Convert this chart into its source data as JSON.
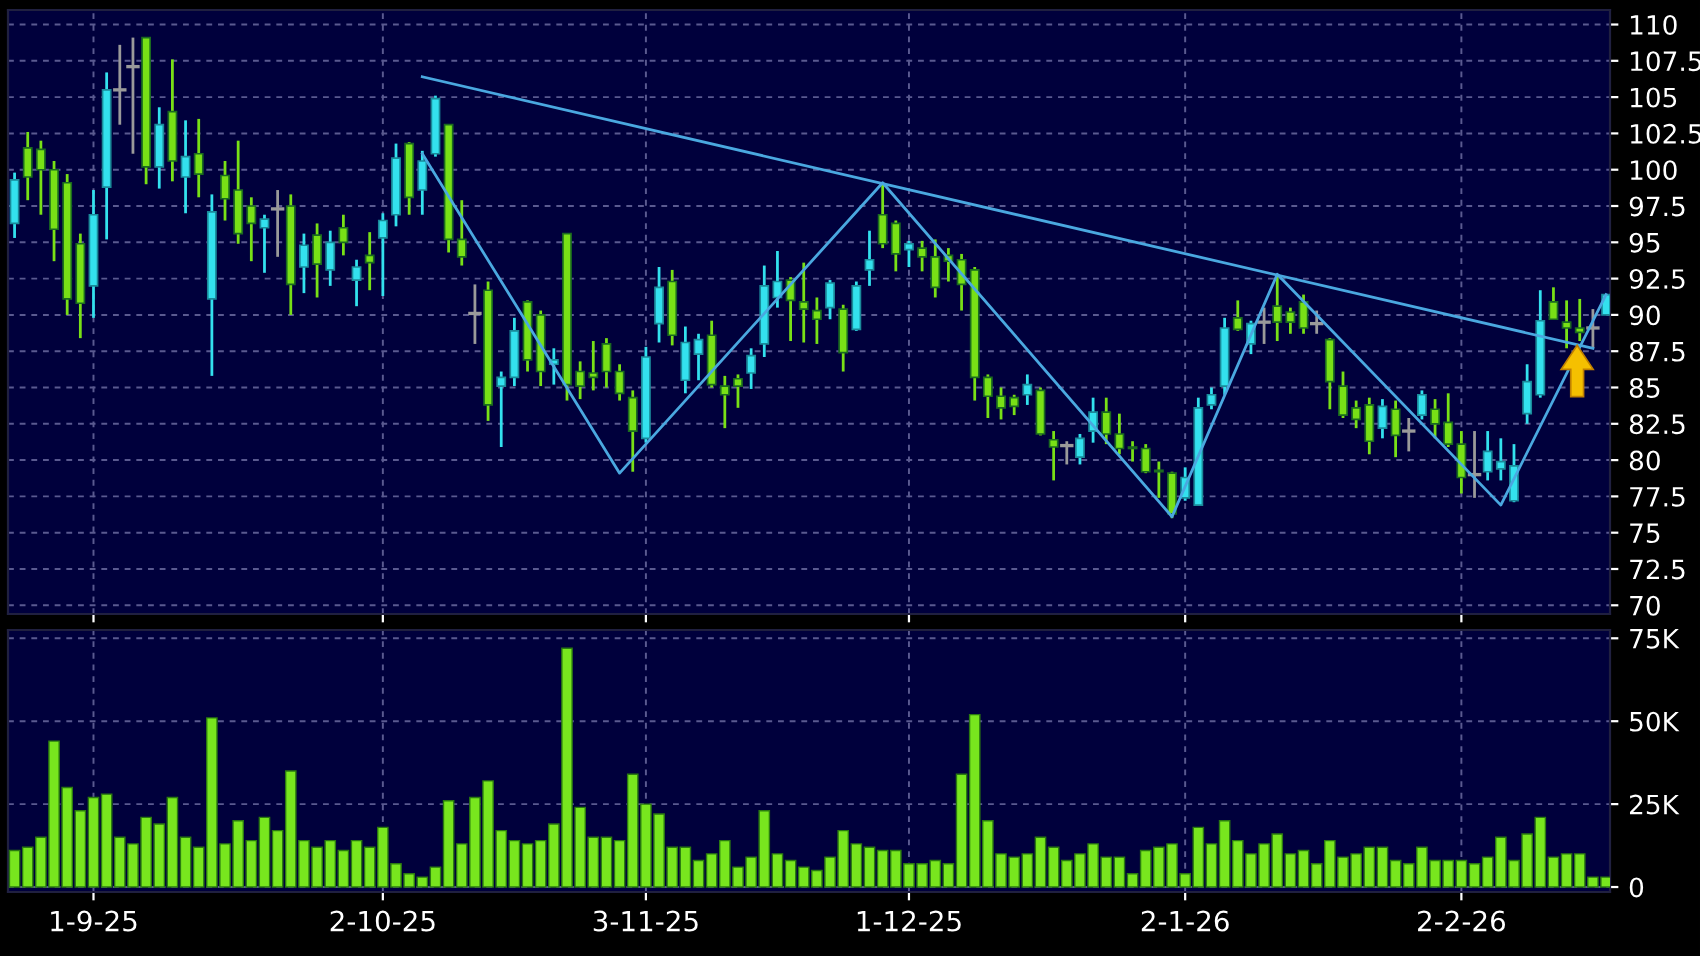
{
  "chart_data": [
    {
      "type": "candlestick",
      "categories": [
        null,
        null,
        null,
        null,
        null,
        null,
        null,
        null,
        null,
        null,
        null,
        null,
        null,
        null,
        null,
        null,
        null,
        null,
        null,
        null,
        null,
        null,
        null,
        null,
        null,
        null,
        null,
        null,
        null,
        null,
        null,
        null,
        null,
        null,
        null,
        null,
        null,
        null,
        null,
        null,
        null,
        null,
        null,
        null,
        null,
        null,
        null,
        null,
        null,
        null,
        null,
        null,
        null,
        null,
        null,
        null,
        null,
        null,
        null,
        null,
        null,
        null,
        null,
        null,
        null,
        null,
        null,
        null,
        null,
        null,
        null,
        null,
        null,
        null,
        null,
        null,
        null,
        null,
        null,
        null,
        null,
        null,
        null,
        null,
        null,
        null,
        null,
        null,
        null,
        null,
        null,
        null,
        null,
        null,
        null,
        null,
        null,
        null,
        null,
        null,
        null,
        null,
        null,
        null,
        null,
        null,
        null,
        null,
        null,
        null,
        null,
        null,
        null,
        null,
        null,
        null,
        null,
        null,
        null,
        null,
        null,
        null
      ],
      "ohlc": [
        [
          96.3,
          99.8,
          95.3,
          99.3
        ],
        [
          101.5,
          102.6,
          97.9,
          99.5
        ],
        [
          101.4,
          102.0,
          96.9,
          100.0
        ],
        [
          100.0,
          100.6,
          93.7,
          95.9
        ],
        [
          99.1,
          99.7,
          90.0,
          91.1
        ],
        [
          94.9,
          95.6,
          88.4,
          90.8
        ],
        [
          92.0,
          98.6,
          89.8,
          96.9
        ],
        [
          98.8,
          106.7,
          95.2,
          105.5
        ],
        [
          105.5,
          108.6,
          103.1,
          105.5
        ],
        [
          107.1,
          109.1,
          101.1,
          107.1
        ],
        [
          109.1,
          109.1,
          99.0,
          100.2
        ],
        [
          100.2,
          104.3,
          98.7,
          103.1
        ],
        [
          104.0,
          107.6,
          99.2,
          100.6
        ],
        [
          99.5,
          103.4,
          97.0,
          100.9
        ],
        [
          101.1,
          103.5,
          98.1,
          99.7
        ],
        [
          91.1,
          98.3,
          85.8,
          97.1
        ],
        [
          99.6,
          100.6,
          96.5,
          98.0
        ],
        [
          98.6,
          102.0,
          94.9,
          95.6
        ],
        [
          97.5,
          98.1,
          93.7,
          96.3
        ],
        [
          96.0,
          96.9,
          92.9,
          96.6
        ],
        [
          97.3,
          98.6,
          94.0,
          97.3
        ],
        [
          97.5,
          98.3,
          90.0,
          92.1
        ],
        [
          93.3,
          95.6,
          91.5,
          94.8
        ],
        [
          95.5,
          96.3,
          91.2,
          93.5
        ],
        [
          93.1,
          95.8,
          92.0,
          95.0
        ],
        [
          96.0,
          96.9,
          94.1,
          95.0
        ],
        [
          92.4,
          93.8,
          90.6,
          93.3
        ],
        [
          94.1,
          95.7,
          91.7,
          93.6
        ],
        [
          95.3,
          97.0,
          91.3,
          96.5
        ],
        [
          96.9,
          101.8,
          96.1,
          100.8
        ],
        [
          101.8,
          101.9,
          96.9,
          98.1
        ],
        [
          98.6,
          101.3,
          96.9,
          100.6
        ],
        [
          101.1,
          105.1,
          100.9,
          104.9
        ],
        [
          103.1,
          103.1,
          94.3,
          95.2
        ],
        [
          95.2,
          97.9,
          93.4,
          94.0
        ],
        [
          90.1,
          92.1,
          88.0,
          90.1
        ],
        [
          91.7,
          92.3,
          82.7,
          83.8
        ],
        [
          85.1,
          86.1,
          80.9,
          85.7
        ],
        [
          85.7,
          89.8,
          85.1,
          88.9
        ],
        [
          90.9,
          91.0,
          86.1,
          86.9
        ],
        [
          90.0,
          90.3,
          85.1,
          86.1
        ],
        [
          86.6,
          87.7,
          85.2,
          86.9
        ],
        [
          95.6,
          95.6,
          84.1,
          85.2
        ],
        [
          86.1,
          86.8,
          84.2,
          85.1
        ],
        [
          86.0,
          88.2,
          84.8,
          85.7
        ],
        [
          88.0,
          88.4,
          85.0,
          86.1
        ],
        [
          86.1,
          86.6,
          84.1,
          84.6
        ],
        [
          84.3,
          84.8,
          79.2,
          82.0
        ],
        [
          81.5,
          87.8,
          81.2,
          87.1
        ],
        [
          89.4,
          93.3,
          88.1,
          91.9
        ],
        [
          92.3,
          93.1,
          87.9,
          88.6
        ],
        [
          85.5,
          89.2,
          84.6,
          88.1
        ],
        [
          87.3,
          88.7,
          85.5,
          88.3
        ],
        [
          88.6,
          89.6,
          85.0,
          85.2
        ],
        [
          85.1,
          85.8,
          82.2,
          84.5
        ],
        [
          85.6,
          85.9,
          83.6,
          85.1
        ],
        [
          86.0,
          87.7,
          84.9,
          87.2
        ],
        [
          88.0,
          93.4,
          87.1,
          92.0
        ],
        [
          91.2,
          94.4,
          90.5,
          92.3
        ],
        [
          92.4,
          92.6,
          88.2,
          91.0
        ],
        [
          90.9,
          93.6,
          88.1,
          90.4
        ],
        [
          90.3,
          91.2,
          88.0,
          89.7
        ],
        [
          90.5,
          92.4,
          89.7,
          92.2
        ],
        [
          90.4,
          90.7,
          86.1,
          87.4
        ],
        [
          89.0,
          92.3,
          88.9,
          92.0
        ],
        [
          93.1,
          95.8,
          92.0,
          93.8
        ],
        [
          96.9,
          99.0,
          94.6,
          94.9
        ],
        [
          96.3,
          96.5,
          93.0,
          94.2
        ],
        [
          94.5,
          95.1,
          93.3,
          94.9
        ],
        [
          94.6,
          95.1,
          93.0,
          94.0
        ],
        [
          94.0,
          95.2,
          91.2,
          91.9
        ],
        [
          94.1,
          94.6,
          92.3,
          93.7
        ],
        [
          93.8,
          94.2,
          90.3,
          92.1
        ],
        [
          93.1,
          93.3,
          84.1,
          85.7
        ],
        [
          85.7,
          85.9,
          82.9,
          84.4
        ],
        [
          84.4,
          85.0,
          82.8,
          83.6
        ],
        [
          84.3,
          84.5,
          83.1,
          83.7
        ],
        [
          84.5,
          85.9,
          83.8,
          85.2
        ],
        [
          84.8,
          85.0,
          81.7,
          81.8
        ],
        [
          81.4,
          82.0,
          78.6,
          80.9
        ],
        [
          81.0,
          81.3,
          79.7,
          81.0
        ],
        [
          80.2,
          81.8,
          79.7,
          81.5
        ],
        [
          82.0,
          84.3,
          81.2,
          83.3
        ],
        [
          83.3,
          84.3,
          81.1,
          81.8
        ],
        [
          81.8,
          83.2,
          80.4,
          80.8
        ],
        [
          80.9,
          81.3,
          79.9,
          80.8
        ],
        [
          80.8,
          81.1,
          79.1,
          79.2
        ],
        [
          79.3,
          79.9,
          77.4,
          79.2
        ],
        [
          79.1,
          79.2,
          76.0,
          76.3
        ],
        [
          77.4,
          79.5,
          77.2,
          78.8
        ],
        [
          76.9,
          84.3,
          76.9,
          83.6
        ],
        [
          83.8,
          85.0,
          83.5,
          84.5
        ],
        [
          85.1,
          89.8,
          84.5,
          89.1
        ],
        [
          89.8,
          91.0,
          88.9,
          89.0
        ],
        [
          88.0,
          89.6,
          87.3,
          89.4
        ],
        [
          89.5,
          90.5,
          88.0,
          89.5
        ],
        [
          90.6,
          92.8,
          88.2,
          89.5
        ],
        [
          90.2,
          90.5,
          88.7,
          89.5
        ],
        [
          90.9,
          91.4,
          88.7,
          89.1
        ],
        [
          89.4,
          90.3,
          88.7,
          89.4
        ],
        [
          88.3,
          88.4,
          83.5,
          85.4
        ],
        [
          85.1,
          86.1,
          82.9,
          83.1
        ],
        [
          83.6,
          84.1,
          82.2,
          82.8
        ],
        [
          83.8,
          84.3,
          80.4,
          81.3
        ],
        [
          82.2,
          84.2,
          81.5,
          83.7
        ],
        [
          83.5,
          84.1,
          80.2,
          81.7
        ],
        [
          82.0,
          82.9,
          80.6,
          82.0
        ],
        [
          83.1,
          84.8,
          82.8,
          84.5
        ],
        [
          83.5,
          84.2,
          81.5,
          82.5
        ],
        [
          82.6,
          84.6,
          80.9,
          81.1
        ],
        [
          81.1,
          82.0,
          77.7,
          78.8
        ],
        [
          79.0,
          82.0,
          77.4,
          79.0
        ],
        [
          79.2,
          82.0,
          78.6,
          80.6
        ],
        [
          79.4,
          81.5,
          78.6,
          79.9
        ],
        [
          77.2,
          81.1,
          77.1,
          79.6
        ],
        [
          83.2,
          86.6,
          82.5,
          85.4
        ],
        [
          84.5,
          91.7,
          84.3,
          89.6
        ],
        [
          90.9,
          91.9,
          89.7,
          89.7
        ],
        [
          89.5,
          91.0,
          87.7,
          89.1
        ],
        [
          89.1,
          91.1,
          88.2,
          88.8
        ],
        [
          89.1,
          90.4,
          87.7,
          89.1
        ],
        [
          90.0,
          91.4,
          90.0,
          91.4
        ]
      ],
      "colors": [
        "#33e1ee",
        "#78e016",
        "#78e016",
        "#78e016",
        "#78e016",
        "#78e016",
        "#33e1ee",
        "#33e1ee",
        "#9a9a9a",
        "#9a9a9a",
        "#78e016",
        "#33e1ee",
        "#78e016",
        "#33e1ee",
        "#78e016",
        "#33e1ee",
        "#78e016",
        "#78e016",
        "#78e016",
        "#33e1ee",
        "#9a9a9a",
        "#78e016",
        "#33e1ee",
        "#78e016",
        "#33e1ee",
        "#78e016",
        "#33e1ee",
        "#78e016",
        "#33e1ee",
        "#33e1ee",
        "#78e016",
        "#33e1ee",
        "#33e1ee",
        "#78e016",
        "#78e016",
        "#9a9a9a",
        "#78e016",
        "#33e1ee",
        "#33e1ee",
        "#78e016",
        "#78e016",
        "#33e1ee",
        "#78e016",
        "#78e016",
        "#78e016",
        "#78e016",
        "#78e016",
        "#78e016",
        "#33e1ee",
        "#33e1ee",
        "#78e016",
        "#33e1ee",
        "#33e1ee",
        "#78e016",
        "#78e016",
        "#78e016",
        "#33e1ee",
        "#33e1ee",
        "#33e1ee",
        "#78e016",
        "#78e016",
        "#78e016",
        "#33e1ee",
        "#78e016",
        "#33e1ee",
        "#33e1ee",
        "#78e016",
        "#78e016",
        "#33e1ee",
        "#78e016",
        "#78e016",
        "#78e016",
        "#78e016",
        "#78e016",
        "#78e016",
        "#78e016",
        "#78e016",
        "#33e1ee",
        "#78e016",
        "#78e016",
        "#9a9a9a",
        "#33e1ee",
        "#33e1ee",
        "#78e016",
        "#78e016",
        "#78e016",
        "#78e016",
        "#78e016",
        "#78e016",
        "#33e1ee",
        "#33e1ee",
        "#33e1ee",
        "#33e1ee",
        "#78e016",
        "#33e1ee",
        "#9a9a9a",
        "#78e016",
        "#78e016",
        "#78e016",
        "#9a9a9a",
        "#78e016",
        "#78e016",
        "#78e016",
        "#78e016",
        "#33e1ee",
        "#78e016",
        "#9a9a9a",
        "#33e1ee",
        "#78e016",
        "#78e016",
        "#78e016",
        "#9a9a9a",
        "#33e1ee",
        "#33e1ee",
        "#33e1ee",
        "#33e1ee",
        "#33e1ee",
        "#78e016",
        "#78e016",
        "#78e016",
        "#9a9a9a",
        "#33e1ee"
      ],
      "series": [
        {
          "type": "line",
          "values": [
            null,
            null,
            null,
            null,
            null,
            null,
            null,
            null,
            null,
            null,
            null,
            null,
            null,
            null,
            null,
            null,
            null,
            null,
            null,
            null,
            null,
            null,
            null,
            null,
            null,
            null,
            null,
            null,
            null,
            null,
            null,
            106.4,
            null,
            null,
            null,
            null,
            null,
            null,
            null,
            null,
            null,
            null,
            null,
            null,
            null,
            null,
            null,
            null,
            null,
            null,
            null,
            null,
            null,
            null,
            null,
            null,
            null,
            null,
            null,
            null,
            null,
            null,
            null,
            null,
            null,
            null,
            null,
            null,
            null,
            null,
            null,
            null,
            null,
            null,
            null,
            null,
            null,
            null,
            null,
            null,
            null,
            null,
            null,
            null,
            null,
            null,
            null,
            null,
            null,
            null,
            null,
            null,
            null,
            null,
            null,
            null,
            null,
            null,
            null,
            null,
            null,
            null,
            null,
            null,
            null,
            null,
            null,
            null,
            null,
            null,
            null,
            null,
            null,
            null,
            null,
            null,
            null,
            null,
            null,
            null,
            87.7,
            null
          ],
          "color": "#4aa8e0"
        },
        {
          "type": "line",
          "values": [
            null,
            null,
            null,
            null,
            null,
            null,
            null,
            null,
            null,
            null,
            null,
            null,
            null,
            null,
            null,
            null,
            null,
            null,
            null,
            null,
            null,
            null,
            null,
            null,
            null,
            null,
            null,
            null,
            null,
            null,
            null,
            101.1,
            null,
            null,
            null,
            null,
            null,
            null,
            null,
            null,
            null,
            null,
            null,
            null,
            null,
            null,
            79.1,
            null,
            null,
            null,
            null,
            null,
            null,
            null,
            null,
            null,
            null,
            null,
            null,
            null,
            null,
            null,
            null,
            null,
            null,
            null,
            99.1,
            null,
            null,
            null,
            null,
            null,
            null,
            null,
            null,
            null,
            null,
            null,
            null,
            null,
            null,
            null,
            null,
            null,
            null,
            null,
            null,
            null,
            76.1,
            null,
            null,
            null,
            null,
            null,
            null,
            null,
            92.8,
            null,
            null,
            null,
            null,
            null,
            null,
            null,
            null,
            null,
            null,
            null,
            null,
            null,
            null,
            null,
            null,
            76.9,
            null,
            null,
            null,
            null,
            null,
            null,
            null,
            91.4
          ],
          "color": "#4aa8e0"
        }
      ],
      "ylim": [
        69.4,
        111
      ],
      "yticks": [
        70,
        72.5,
        75,
        77.5,
        80,
        82.5,
        85,
        87.5,
        90,
        92.5,
        95,
        97.5,
        100,
        102.5,
        105,
        107.5,
        110
      ],
      "grid": true
    },
    {
      "type": "bar",
      "categories": [
        null,
        null,
        null,
        null,
        null,
        null,
        "1-9-25",
        null,
        null,
        null,
        null,
        null,
        null,
        null,
        null,
        null,
        null,
        null,
        null,
        null,
        null,
        null,
        null,
        null,
        null,
        null,
        null,
        null,
        "2-10-25",
        null,
        null,
        null,
        null,
        null,
        null,
        null,
        null,
        null,
        null,
        null,
        null,
        null,
        null,
        null,
        null,
        null,
        null,
        null,
        "3-11-25",
        null,
        null,
        null,
        null,
        null,
        null,
        null,
        null,
        null,
        null,
        null,
        null,
        null,
        null,
        null,
        null,
        null,
        null,
        null,
        "1-12-25",
        null,
        null,
        null,
        null,
        null,
        null,
        null,
        null,
        null,
        null,
        null,
        null,
        null,
        null,
        null,
        null,
        null,
        null,
        null,
        null,
        "2-1-26",
        null,
        null,
        null,
        null,
        null,
        null,
        null,
        null,
        null,
        null,
        null,
        null,
        null,
        null,
        null,
        null,
        null,
        null,
        null,
        null,
        "2-2-26",
        null,
        null,
        null,
        null,
        null,
        null,
        null,
        null,
        null,
        null,
        null
      ],
      "values": [
        11,
        12,
        15,
        44,
        30,
        23,
        27,
        28,
        15,
        13,
        21,
        19,
        27,
        15,
        12,
        51,
        13,
        20,
        14,
        21,
        17,
        35,
        14,
        12,
        14,
        11,
        14,
        12,
        18,
        7,
        4,
        3,
        6,
        26,
        13,
        27,
        32,
        17,
        14,
        13,
        14,
        19,
        72,
        24,
        15,
        15,
        14,
        34,
        25,
        22,
        12,
        12,
        8,
        10,
        14,
        6,
        9,
        23,
        10,
        8,
        6,
        5,
        9,
        17,
        13,
        12,
        11,
        11,
        7,
        7,
        8,
        7,
        34,
        52,
        20,
        10,
        9,
        10,
        15,
        12,
        8,
        10,
        13,
        9,
        9,
        4,
        11,
        12,
        13,
        4,
        18,
        13,
        20,
        14,
        10,
        13,
        16,
        10,
        11,
        7,
        14,
        9,
        10,
        12,
        12,
        8,
        7,
        12,
        8,
        8,
        8,
        7,
        9,
        15,
        8,
        16,
        21,
        9,
        10,
        10,
        3,
        3
      ],
      "color": "#78e61e",
      "ylim": [
        -1.5,
        77.5
      ],
      "yticks": [
        0,
        {
          "value": 25,
          "label": "25K"
        },
        {
          "value": 50,
          "label": "50K"
        },
        {
          "value": 75,
          "label": "75K"
        }
      ],
      "grid": true
    }
  ]
}
